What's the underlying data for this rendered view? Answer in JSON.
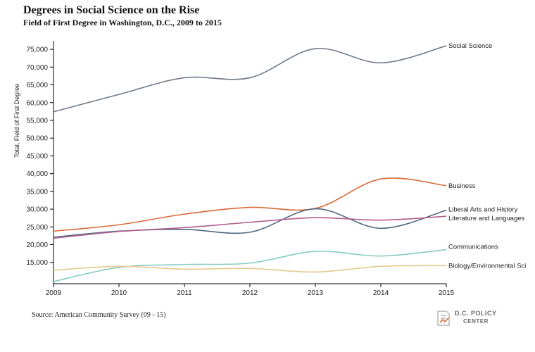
{
  "chart_data": {
    "type": "line",
    "title": "Degrees in Social Science on the Rise",
    "subtitle": "Field of First Degree in Washington, D.C., 2009 to 2015",
    "xlabel": "",
    "ylabel": "Total, Field of First Degree",
    "x": [
      2009,
      2010,
      2011,
      2012,
      2013,
      2014,
      2015
    ],
    "x_tick_labels": [
      "2009",
      "2010",
      "2011",
      "2012",
      "2013",
      "2014",
      "2015"
    ],
    "ylim": [
      9000,
      77000
    ],
    "y_ticks": [
      15000,
      20000,
      25000,
      30000,
      35000,
      40000,
      45000,
      50000,
      55000,
      60000,
      65000,
      70000,
      75000
    ],
    "y_tick_labels": [
      "15,000",
      "20,000",
      "25,000",
      "30,000",
      "35,000",
      "40,000",
      "45,000",
      "50,000",
      "55,000",
      "60,000",
      "65,000",
      "70,000",
      "75,000"
    ],
    "grid": false,
    "legend": "end-of-line labels",
    "series": [
      {
        "name": "Social Science",
        "color": "#6e7b8b",
        "values": [
          57400,
          62300,
          67000,
          67000,
          75200,
          71200,
          76000
        ]
      },
      {
        "name": "Business",
        "color": "#d9693a",
        "values": [
          23800,
          25600,
          28600,
          30500,
          30200,
          38500,
          36600
        ]
      },
      {
        "name": "Liberal Arts and History",
        "color": "#4f6a82",
        "values": [
          22100,
          23800,
          24300,
          23500,
          30100,
          24600,
          29700
        ]
      },
      {
        "name": "Literature and Languages",
        "color": "#b05e8d",
        "values": [
          21800,
          23700,
          24800,
          26300,
          27600,
          26900,
          28000
        ]
      },
      {
        "name": "Communications",
        "color": "#86cdc2",
        "values": [
          9600,
          13600,
          14400,
          14800,
          18100,
          16800,
          18600
        ]
      },
      {
        "name": "Biology/Environmental Sci",
        "color": "#e6c98f",
        "values": [
          12800,
          13900,
          13100,
          13300,
          12300,
          13900,
          14100
        ]
      }
    ]
  },
  "source": "Source: American Community Survey (09 - 15)",
  "logo": {
    "line1": "D.C. POLICY",
    "line2": "CENTER",
    "icon": "dc-policy-center-logo-icon"
  }
}
